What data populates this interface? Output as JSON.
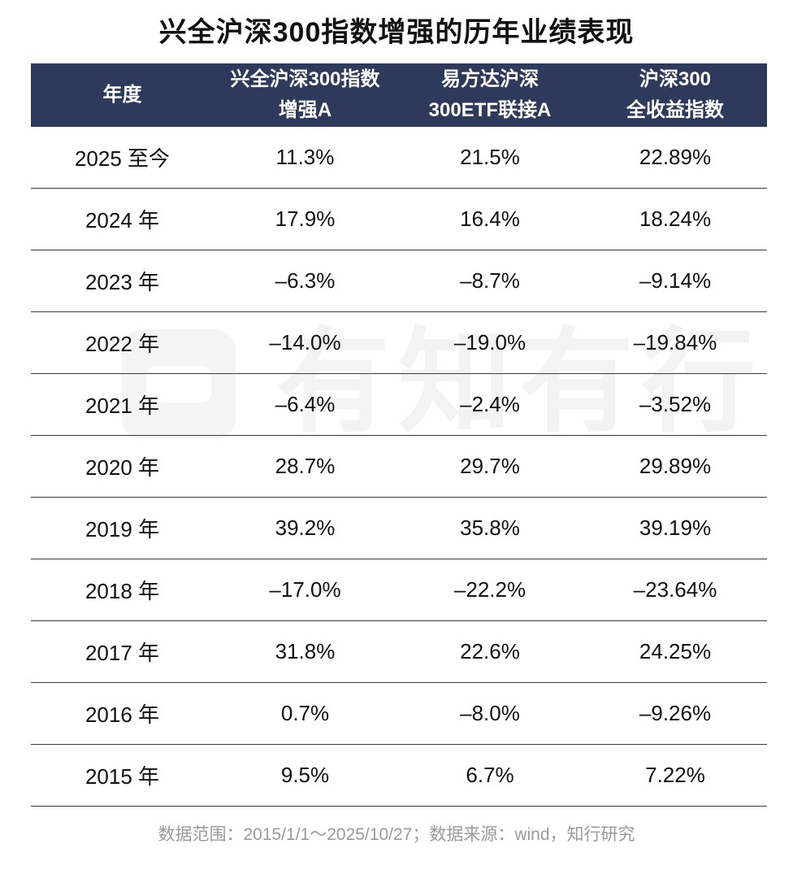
{
  "title": "兴全沪深300指数增强的历年业绩表现",
  "watermark": {
    "text": "有知有行"
  },
  "table": {
    "headers": [
      {
        "lines": [
          "年度"
        ]
      },
      {
        "lines": [
          "兴全沪深300指数",
          "增强A"
        ]
      },
      {
        "lines": [
          "易方达沪深",
          "300ETF联接A"
        ]
      },
      {
        "lines": [
          "沪深300",
          "全收益指数"
        ]
      }
    ],
    "rows": [
      [
        "2025 至今",
        "11.3%",
        "21.5%",
        "22.89%"
      ],
      [
        "2024 年",
        "17.9%",
        "16.4%",
        "18.24%"
      ],
      [
        "2023 年",
        "–6.3%",
        "–8.7%",
        "–9.14%"
      ],
      [
        "2022 年",
        "–14.0%",
        "–19.0%",
        "–19.84%"
      ],
      [
        "2021 年",
        "–6.4%",
        "–2.4%",
        "–3.52%"
      ],
      [
        "2020 年",
        "28.7%",
        "29.7%",
        "29.89%"
      ],
      [
        "2019 年",
        "39.2%",
        "35.8%",
        "39.19%"
      ],
      [
        "2018 年",
        "–17.0%",
        "–22.2%",
        "–23.64%"
      ],
      [
        "2017 年",
        "31.8%",
        "22.6%",
        "24.25%"
      ],
      [
        "2016 年",
        "0.7%",
        "–8.0%",
        "–9.26%"
      ],
      [
        "2015 年",
        "9.5%",
        "6.7%",
        "7.22%"
      ]
    ]
  },
  "footnote": "数据范围：2015/1/1～2025/10/27；数据来源：wind，知行研究",
  "colors": {
    "header_bg": "#2e3a5b",
    "header_text": "#ffffff",
    "row_border": "#2e3a5b",
    "footnote": "#9a9a9a"
  }
}
